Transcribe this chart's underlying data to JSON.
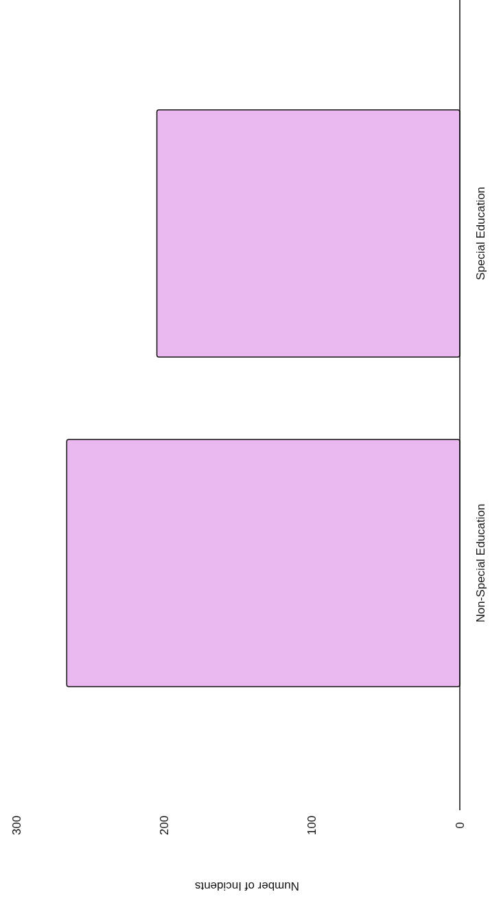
{
  "chart_data": {
    "type": "bar",
    "orientation": "horizontal",
    "categories": [
      "Special Education",
      "Non-Special Education"
    ],
    "values": [
      205,
      266
    ],
    "color": "#e9b9ef",
    "xlabel": "Number of Incidents",
    "xlim": [
      300,
      0
    ],
    "xticks": [
      0,
      100,
      200,
      300
    ]
  }
}
